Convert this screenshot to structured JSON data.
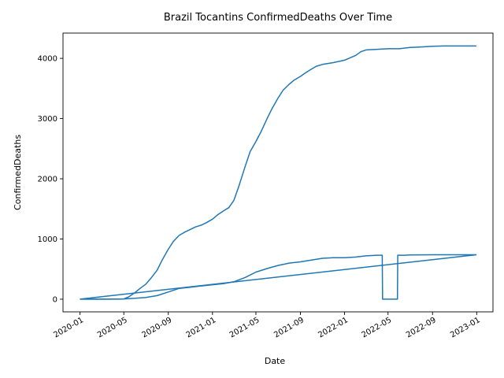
{
  "chart_data": {
    "type": "line",
    "title": "Brazil Tocantins ConfirmedDeaths Over Time",
    "xlabel": "Date",
    "ylabel": "ConfirmedDeaths",
    "color": "#1f77b4",
    "grid": false,
    "legend": "none",
    "xlim": [
      "2019-11-15",
      "2023-02-15"
    ],
    "ylim": [
      -210,
      4420
    ],
    "x_ticks": [
      "2020-01",
      "2020-05",
      "2020-09",
      "2021-01",
      "2021-05",
      "2021-09",
      "2022-01",
      "2022-05",
      "2022-09",
      "2023-01"
    ],
    "y_ticks": [
      0,
      1000,
      2000,
      3000,
      4000
    ],
    "series": [
      {
        "x": [
          "2020-01-01",
          "2020-04-15",
          "2020-05-01",
          "2020-05-15",
          "2020-06-01",
          "2020-06-15",
          "2020-07-01",
          "2020-07-15",
          "2020-08-01",
          "2020-08-15",
          "2020-09-01",
          "2020-09-15",
          "2020-10-01",
          "2020-10-15",
          "2020-11-01",
          "2020-11-15",
          "2020-12-01",
          "2020-12-15",
          "2021-01-01",
          "2021-01-15",
          "2021-02-01",
          "2021-02-15",
          "2021-03-01",
          "2021-03-15",
          "2021-04-01",
          "2021-04-15",
          "2021-05-01",
          "2021-05-15",
          "2021-06-01",
          "2021-06-15",
          "2021-07-01",
          "2021-07-15",
          "2021-08-01",
          "2021-08-15",
          "2021-09-01",
          "2021-09-15",
          "2021-10-01",
          "2021-10-15",
          "2021-11-01",
          "2021-12-01",
          "2022-01-01",
          "2022-02-01",
          "2022-02-15",
          "2022-03-01",
          "2022-04-01",
          "2022-05-01",
          "2022-06-01",
          "2022-07-01",
          "2022-08-01",
          "2022-09-01",
          "2022-10-01",
          "2022-12-31"
        ],
        "y": [
          0,
          0,
          5,
          40,
          110,
          180,
          250,
          350,
          480,
          650,
          830,
          960,
          1060,
          1110,
          1160,
          1200,
          1230,
          1270,
          1330,
          1400,
          1470,
          1520,
          1640,
          1880,
          2200,
          2450,
          2620,
          2780,
          3000,
          3170,
          3340,
          3470,
          3570,
          3640,
          3700,
          3760,
          3820,
          3870,
          3900,
          3930,
          3970,
          4050,
          4110,
          4140,
          4150,
          4160,
          4160,
          4180,
          4190,
          4200,
          4205,
          4205
        ]
      },
      {
        "x": [
          "2020-01-01",
          "2020-03-01",
          "2020-05-01",
          "2020-06-01",
          "2020-07-01",
          "2020-08-01",
          "2020-09-01",
          "2020-10-01",
          "2020-11-01",
          "2020-12-01",
          "2021-01-01",
          "2021-02-01",
          "2021-03-01",
          "2021-04-01",
          "2021-05-01",
          "2021-06-01",
          "2021-07-01",
          "2021-08-01",
          "2021-09-01",
          "2021-10-01",
          "2021-11-01",
          "2021-12-01",
          "2022-01-01",
          "2022-02-01",
          "2022-03-01",
          "2022-04-01",
          "2022-04-15",
          "2022-04-16",
          "2022-05-27",
          "2022-05-28",
          "2022-06-15",
          "2022-07-01",
          "2022-09-01",
          "2022-12-31"
        ],
        "y": [
          0,
          0,
          5,
          15,
          30,
          60,
          120,
          180,
          200,
          220,
          240,
          260,
          290,
          360,
          450,
          510,
          560,
          600,
          620,
          650,
          680,
          690,
          690,
          700,
          720,
          730,
          730,
          0,
          0,
          730,
          730,
          735,
          738,
          738
        ]
      },
      {
        "x": [
          "2020-01-01",
          "2022-12-31"
        ],
        "y": [
          0,
          738
        ]
      }
    ]
  }
}
